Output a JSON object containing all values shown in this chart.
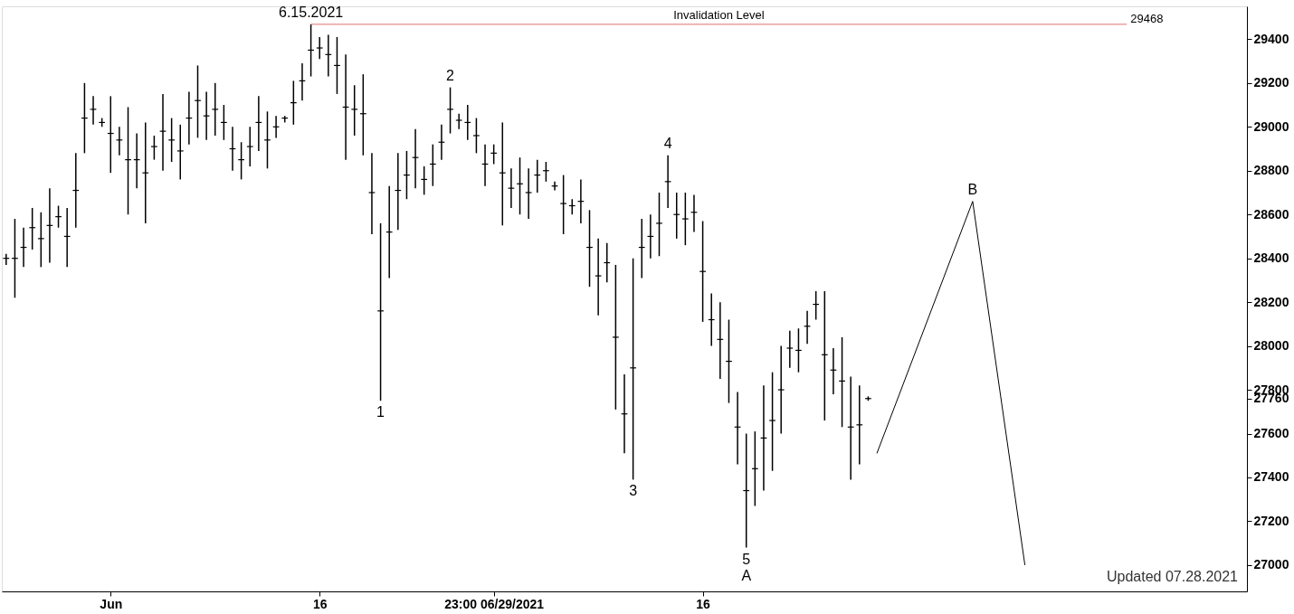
{
  "chart_data": {
    "type": "candlestick",
    "categories": [
      null,
      null,
      null,
      null,
      null,
      null,
      null,
      null,
      null,
      null,
      null,
      null,
      "Jun",
      null,
      null,
      null,
      null,
      null,
      null,
      null,
      null,
      null,
      null,
      null,
      null,
      null,
      null,
      null,
      null,
      null,
      null,
      null,
      null,
      null,
      null,
      null,
      "16",
      null,
      null,
      null,
      null,
      null,
      null,
      null,
      null,
      null,
      null,
      null,
      null,
      null,
      null,
      null,
      null,
      null,
      null,
      null,
      "23:00 06/29/2021",
      null,
      null,
      null,
      null,
      null,
      null,
      null,
      null,
      null,
      null,
      null,
      null,
      null,
      null,
      null,
      null,
      null,
      null,
      null,
      null,
      null,
      null,
      null,
      "16",
      null,
      null,
      null,
      null,
      null,
      null,
      null,
      null,
      null,
      null,
      null,
      null,
      null,
      null,
      null,
      null,
      null,
      null,
      null,
      null,
      null,
      null,
      null,
      null,
      null,
      null,
      null,
      null,
      null,
      null,
      null,
      null,
      null,
      null,
      null,
      null,
      null,
      null,
      null,
      null,
      null,
      null,
      null,
      null,
      null,
      null,
      null,
      null,
      null,
      null,
      null,
      null,
      null,
      null,
      null,
      null,
      null,
      null,
      null,
      null,
      null,
      null
    ],
    "series": [
      {
        "type": "candlestick",
        "color": "#000000",
        "ohlc": [
          [
            28400,
            28420,
            28370,
            28400
          ],
          [
            28400,
            28580,
            28220,
            28400
          ],
          [
            28450,
            28540,
            28360,
            28450
          ],
          [
            28540,
            28630,
            28440,
            28540
          ],
          [
            28490,
            28610,
            28360,
            28490
          ],
          [
            28550,
            28720,
            28380,
            28550
          ],
          [
            28590,
            28640,
            28540,
            28590
          ],
          [
            28500,
            28630,
            28360,
            28500
          ],
          [
            28710,
            28880,
            28540,
            28710
          ],
          [
            29040,
            29200,
            28880,
            29040
          ],
          [
            29080,
            29140,
            29010,
            29080
          ],
          [
            29020,
            29040,
            29000,
            29020
          ],
          [
            28970,
            29140,
            28790,
            28970
          ],
          [
            28940,
            29000,
            28870,
            28940
          ],
          [
            28850,
            29090,
            28600,
            28850
          ],
          [
            28850,
            28970,
            28720,
            28850
          ],
          [
            28790,
            29020,
            28560,
            28790
          ],
          [
            28910,
            28960,
            28850,
            28910
          ],
          [
            28980,
            29150,
            28800,
            28980
          ],
          [
            28940,
            29040,
            28840,
            28940
          ],
          [
            28890,
            29010,
            28760,
            28890
          ],
          [
            29040,
            29160,
            28920,
            29040
          ],
          [
            29120,
            29280,
            28950,
            29120
          ],
          [
            29050,
            29160,
            28940,
            29050
          ],
          [
            29080,
            29200,
            28960,
            29080
          ],
          [
            29020,
            29100,
            28940,
            29020
          ],
          [
            28900,
            29000,
            28800,
            28900
          ],
          [
            28850,
            28930,
            28760,
            28850
          ],
          [
            28910,
            29000,
            28820,
            28910
          ],
          [
            29020,
            29140,
            28890,
            29020
          ],
          [
            28940,
            29070,
            28810,
            28940
          ],
          [
            29000,
            29050,
            28950,
            29000
          ],
          [
            29040,
            29050,
            29020,
            29040
          ],
          [
            29110,
            29210,
            29010,
            29110
          ],
          [
            29210,
            29290,
            29120,
            29210
          ],
          [
            29350,
            29468,
            29230,
            29350
          ],
          [
            29360,
            29410,
            29310,
            29360
          ],
          [
            29330,
            29420,
            29230,
            29330
          ],
          [
            29280,
            29410,
            29150,
            29280
          ],
          [
            29090,
            29330,
            28850,
            29090
          ],
          [
            29080,
            29190,
            28960,
            29080
          ],
          [
            29060,
            29240,
            28870,
            29060
          ],
          [
            28700,
            28880,
            28510,
            28700
          ],
          [
            28160,
            28560,
            27750,
            28160
          ],
          [
            28520,
            28730,
            28310,
            28520
          ],
          [
            28710,
            28880,
            28530,
            28710
          ],
          [
            28780,
            28890,
            28670,
            28780
          ],
          [
            28860,
            28990,
            28720,
            28860
          ],
          [
            28760,
            28820,
            28690,
            28760
          ],
          [
            28830,
            28920,
            28730,
            28830
          ],
          [
            28930,
            29010,
            28850,
            28930
          ],
          [
            29080,
            29180,
            28970,
            29080
          ],
          [
            29030,
            29060,
            28990,
            29030
          ],
          [
            29020,
            29100,
            28940,
            29020
          ],
          [
            28960,
            29040,
            28880,
            28960
          ],
          [
            28830,
            28920,
            28730,
            28830
          ],
          [
            28880,
            28920,
            28830,
            28880
          ],
          [
            28790,
            29020,
            28550,
            28790
          ],
          [
            28720,
            28810,
            28630,
            28720
          ],
          [
            28740,
            28860,
            28600,
            28740
          ],
          [
            28700,
            28810,
            28580,
            28700
          ],
          [
            28780,
            28850,
            28700,
            28780
          ],
          [
            28800,
            28840,
            28750,
            28800
          ],
          [
            28730,
            28750,
            28710,
            28730
          ],
          [
            28650,
            28780,
            28510,
            28650
          ],
          [
            28640,
            28670,
            28600,
            28640
          ],
          [
            28660,
            28760,
            28560,
            28660
          ],
          [
            28450,
            28620,
            28270,
            28450
          ],
          [
            28320,
            28490,
            28140,
            28320
          ],
          [
            28380,
            28470,
            28290,
            28380
          ],
          [
            28040,
            28370,
            27710,
            28040
          ],
          [
            27690,
            27870,
            27510,
            27690
          ],
          [
            27900,
            28400,
            27390,
            27900
          ],
          [
            28450,
            28580,
            28310,
            28450
          ],
          [
            28500,
            28600,
            28400,
            28500
          ],
          [
            28560,
            28700,
            28410,
            28560
          ],
          [
            28750,
            28870,
            28630,
            28750
          ],
          [
            28600,
            28700,
            28490,
            28600
          ],
          [
            28580,
            28700,
            28460,
            28580
          ],
          [
            28610,
            28690,
            28520,
            28610
          ],
          [
            28340,
            28570,
            28110,
            28340
          ],
          [
            28120,
            28240,
            28000,
            28120
          ],
          [
            28030,
            28200,
            27850,
            28030
          ],
          [
            27930,
            28120,
            27740,
            27930
          ],
          [
            27630,
            27790,
            27460,
            27630
          ],
          [
            27340,
            27600,
            27080,
            27340
          ],
          [
            27440,
            27610,
            27270,
            27440
          ],
          [
            27580,
            27820,
            27340,
            27580
          ],
          [
            27660,
            27880,
            27430,
            27660
          ],
          [
            27800,
            28000,
            27600,
            27800
          ],
          [
            27990,
            28070,
            27900,
            27990
          ],
          [
            27980,
            28080,
            27880,
            27980
          ],
          [
            28090,
            28160,
            28010,
            28090
          ],
          [
            28190,
            28250,
            28120,
            28190
          ],
          [
            27960,
            28250,
            27660,
            27960
          ],
          [
            27890,
            27990,
            27780,
            27890
          ],
          [
            27840,
            28040,
            27630,
            27840
          ],
          [
            27630,
            27860,
            27390,
            27630
          ],
          [
            27640,
            27820,
            27460,
            27640
          ],
          [
            27760,
            27770,
            27750,
            27760
          ],
          null,
          null,
          null,
          null,
          null,
          null,
          null,
          null,
          null,
          null,
          null,
          null,
          null,
          null,
          null,
          null,
          null,
          null,
          null,
          null,
          null,
          null,
          null,
          null,
          null,
          null,
          null,
          null,
          null,
          null,
          null,
          null,
          null,
          null,
          null,
          null,
          null,
          null,
          null,
          null,
          null,
          null,
          null
        ]
      },
      {
        "type": "line",
        "color": "#000000",
        "values": [
          null,
          null,
          null,
          null,
          null,
          null,
          null,
          null,
          null,
          null,
          null,
          null,
          null,
          null,
          null,
          null,
          null,
          null,
          null,
          null,
          null,
          null,
          null,
          null,
          null,
          null,
          null,
          null,
          null,
          null,
          null,
          null,
          null,
          null,
          null,
          null,
          null,
          null,
          null,
          null,
          null,
          null,
          null,
          null,
          null,
          null,
          null,
          null,
          null,
          null,
          null,
          null,
          null,
          null,
          null,
          null,
          null,
          null,
          null,
          null,
          null,
          null,
          null,
          null,
          null,
          null,
          null,
          null,
          null,
          null,
          null,
          null,
          null,
          null,
          null,
          null,
          null,
          null,
          null,
          null,
          null,
          null,
          null,
          null,
          null,
          null,
          null,
          null,
          null,
          null,
          null,
          null,
          null,
          null,
          null,
          null,
          null,
          null,
          null,
          null,
          27510,
          null,
          null,
          null,
          null,
          null,
          null,
          null,
          null,
          null,
          null,
          28660,
          null,
          null,
          null,
          null,
          null,
          27000,
          null,
          null,
          null,
          null,
          null,
          null,
          null,
          null,
          null,
          null,
          null,
          null,
          null,
          null,
          null,
          null,
          null,
          null,
          null,
          null,
          null,
          null,
          null,
          null,
          null
        ]
      }
    ],
    "ylim": [
      26880,
      29550
    ],
    "yticks": [
      27000,
      27200,
      27400,
      27600,
      {
        "value": 27760,
        "label": "27760"
      },
      27800,
      28000,
      28200,
      28400,
      28600,
      28800,
      29000,
      29200,
      29400
    ],
    "grid": false,
    "ref_lines": [
      {
        "axis": "y",
        "value": 29468,
        "label": "Invalidation Level",
        "color": "#e07070"
      }
    ],
    "annotations": [
      {
        "text": "6.15.2021",
        "y": 29468
      },
      {
        "text": "1",
        "y": 27750
      },
      {
        "text": "2",
        "y": 29180
      },
      {
        "text": "3",
        "y": 27390
      },
      {
        "text": "4",
        "y": 28870
      },
      {
        "text": "5",
        "y": 27080
      },
      {
        "text": "A",
        "y": 27080
      },
      {
        "text": "B",
        "y": 28660
      },
      "29468",
      "Updated 07.28.2021"
    ]
  }
}
